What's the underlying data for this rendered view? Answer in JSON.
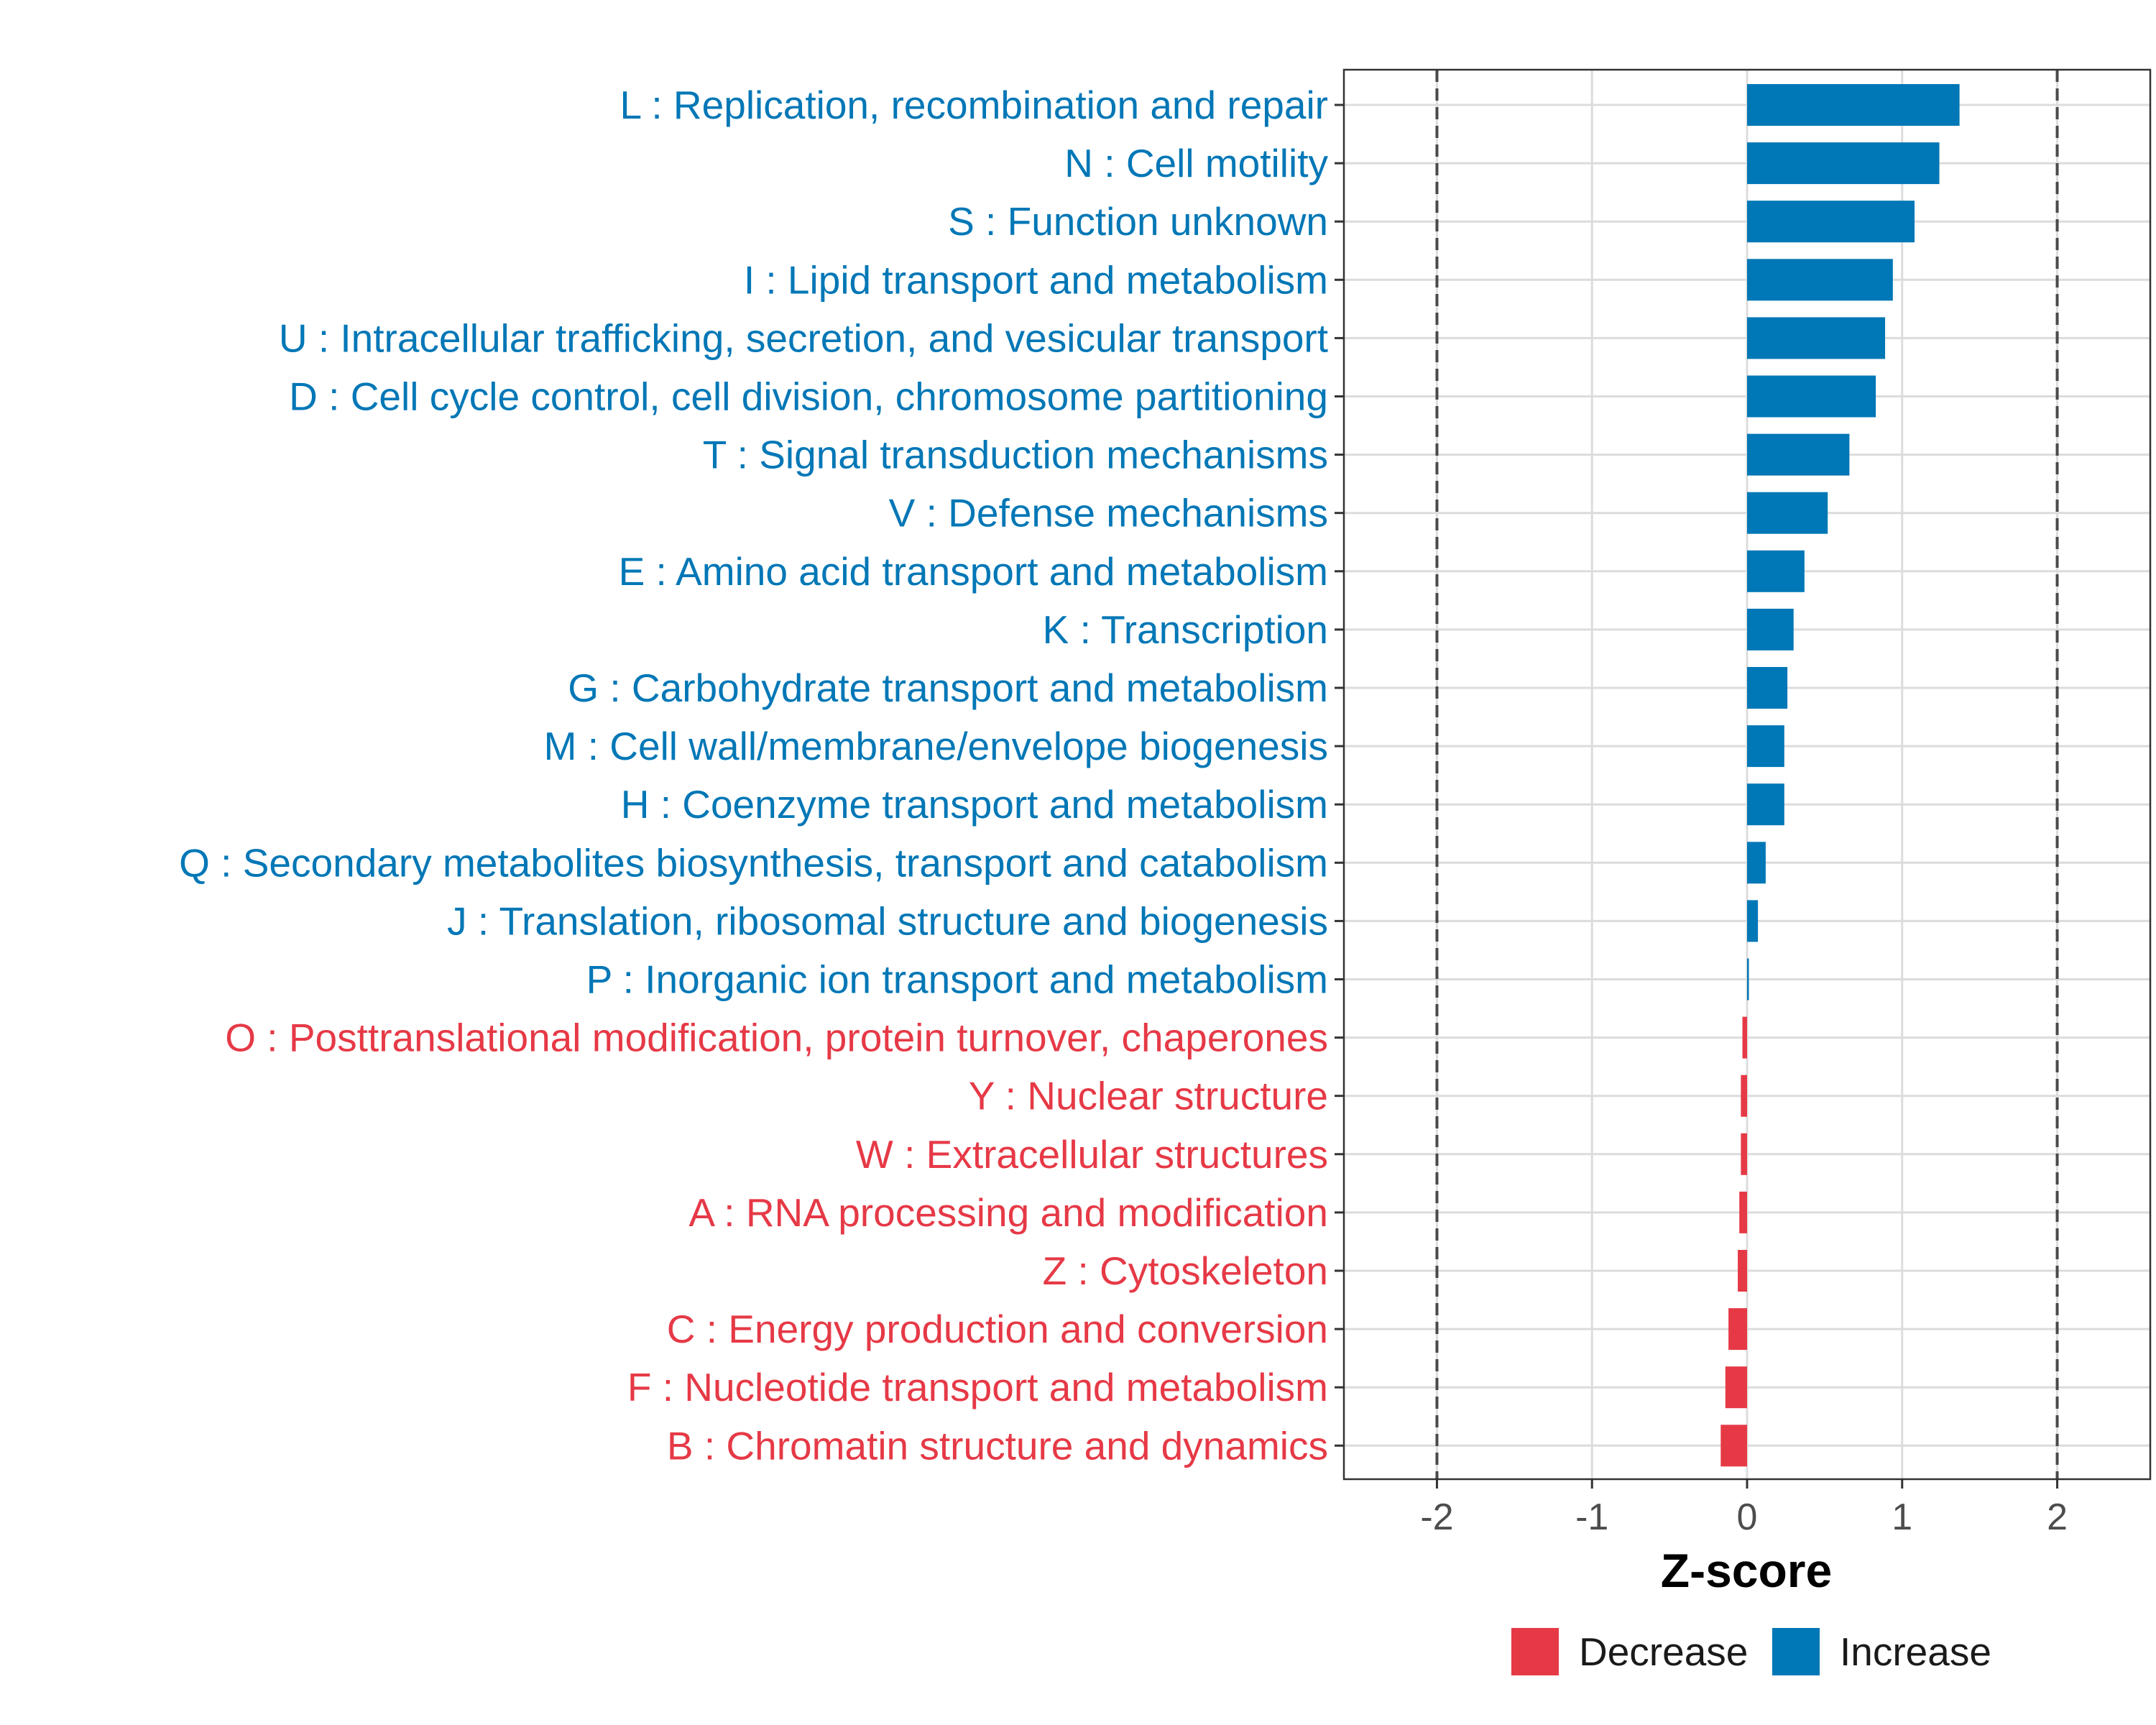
{
  "chart_data": {
    "type": "bar",
    "orientation": "horizontal",
    "title": "",
    "xlabel": "Z-score",
    "ylabel": "",
    "xlim": [
      -2.6,
      2.6
    ],
    "xticks": [
      -2,
      -1,
      0,
      1,
      2
    ],
    "xtick_labels": [
      "-2",
      "-1",
      "0",
      "1",
      "2"
    ],
    "reference_lines": [
      -2,
      2
    ],
    "grid": true,
    "legend_position": "bottom",
    "colors": {
      "Decrease": "#e63946",
      "Increase": "#0077b6"
    },
    "categories": [
      {
        "label": "L : Replication, recombination and repair",
        "value": 1.37,
        "direction": "Increase"
      },
      {
        "label": "N : Cell motility",
        "value": 1.24,
        "direction": "Increase"
      },
      {
        "label": "S : Function unknown",
        "value": 1.08,
        "direction": "Increase"
      },
      {
        "label": "I : Lipid transport and metabolism",
        "value": 0.94,
        "direction": "Increase"
      },
      {
        "label": "U : Intracellular trafficking, secretion, and vesicular transport",
        "value": 0.89,
        "direction": "Increase"
      },
      {
        "label": "D : Cell cycle control, cell division, chromosome partitioning",
        "value": 0.83,
        "direction": "Increase"
      },
      {
        "label": "T : Signal transduction mechanisms",
        "value": 0.66,
        "direction": "Increase"
      },
      {
        "label": "V : Defense mechanisms",
        "value": 0.52,
        "direction": "Increase"
      },
      {
        "label": "E : Amino acid transport and metabolism",
        "value": 0.37,
        "direction": "Increase"
      },
      {
        "label": "K : Transcription",
        "value": 0.3,
        "direction": "Increase"
      },
      {
        "label": "G : Carbohydrate transport and metabolism",
        "value": 0.26,
        "direction": "Increase"
      },
      {
        "label": "M : Cell wall/membrane/envelope biogenesis",
        "value": 0.24,
        "direction": "Increase"
      },
      {
        "label": "H : Coenzyme transport and metabolism",
        "value": 0.24,
        "direction": "Increase"
      },
      {
        "label": "Q : Secondary metabolites biosynthesis, transport and catabolism",
        "value": 0.12,
        "direction": "Increase"
      },
      {
        "label": "J : Translation, ribosomal structure and biogenesis",
        "value": 0.07,
        "direction": "Increase"
      },
      {
        "label": "P : Inorganic ion transport and metabolism",
        "value": 0.01,
        "direction": "Increase"
      },
      {
        "label": "O : Posttranslational modification, protein turnover, chaperones",
        "value": -0.03,
        "direction": "Decrease"
      },
      {
        "label": "Y : Nuclear structure",
        "value": -0.04,
        "direction": "Decrease"
      },
      {
        "label": "W : Extracellular structures",
        "value": -0.04,
        "direction": "Decrease"
      },
      {
        "label": "A : RNA processing and modification",
        "value": -0.05,
        "direction": "Decrease"
      },
      {
        "label": "Z : Cytoskeleton",
        "value": -0.06,
        "direction": "Decrease"
      },
      {
        "label": "C : Energy production and conversion",
        "value": -0.12,
        "direction": "Decrease"
      },
      {
        "label": "F : Nucleotide transport and metabolism",
        "value": -0.14,
        "direction": "Decrease"
      },
      {
        "label": "B : Chromatin structure and dynamics",
        "value": -0.17,
        "direction": "Decrease"
      }
    ],
    "legend": [
      {
        "name": "Decrease",
        "color": "#e63946"
      },
      {
        "name": "Increase",
        "color": "#0077b6"
      }
    ]
  }
}
